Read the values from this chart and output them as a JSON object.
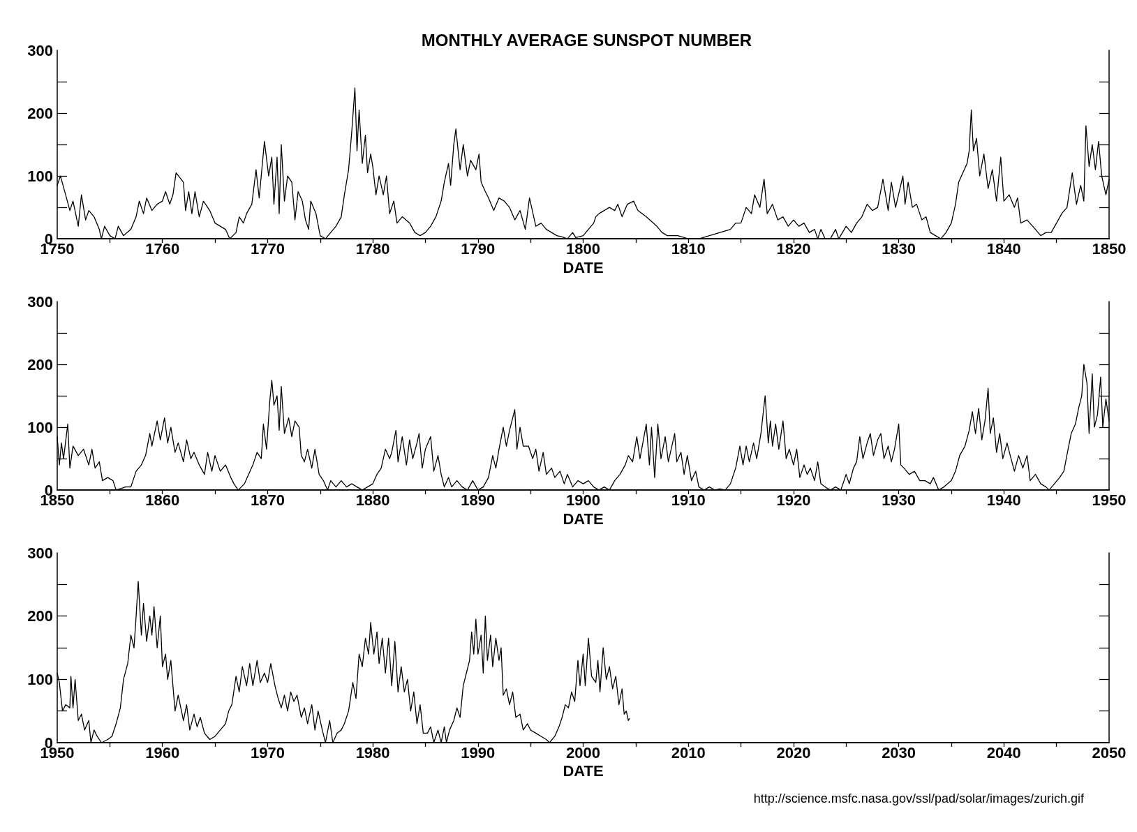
{
  "chart_data": [
    {
      "type": "line",
      "title": "MONTHLY AVERAGE SUNSPOT NUMBER",
      "xlabel": "DATE",
      "color": "#000000",
      "grid": false,
      "marker": "none",
      "line_style": "solid",
      "xlim": [
        1750,
        1850
      ],
      "xticks": [
        1750,
        {
          "value": 1755,
          "label": null
        },
        1760,
        {
          "value": 1765,
          "label": null
        },
        1770,
        {
          "value": 1775,
          "label": null
        },
        1780,
        {
          "value": 1785,
          "label": null
        },
        1790,
        {
          "value": 1795,
          "label": null
        },
        1800,
        {
          "value": 1805,
          "label": null
        },
        1810,
        {
          "value": 1815,
          "label": null
        },
        1820,
        {
          "value": 1825,
          "label": null
        },
        1830,
        {
          "value": 1835,
          "label": null
        },
        1840,
        {
          "value": 1845,
          "label": null
        },
        1850
      ],
      "ylim": [
        0,
        300
      ],
      "yticks": [
        0,
        {
          "value": 50,
          "label": null
        },
        100,
        {
          "value": 150,
          "label": null
        },
        200,
        {
          "value": 250,
          "label": null
        },
        300
      ],
      "x": [
        1750.0,
        1750.3,
        1750.8,
        1751.2,
        1751.5,
        1752.0,
        1752.3,
        1752.7,
        1753.0,
        1753.5,
        1754.0,
        1754.2,
        1754.5,
        1755.0,
        1755.5,
        1755.8,
        1756.3,
        1757.0,
        1757.5,
        1757.8,
        1758.2,
        1758.5,
        1759.0,
        1759.5,
        1760.0,
        1760.3,
        1760.7,
        1761.0,
        1761.3,
        1762.0,
        1762.2,
        1762.5,
        1762.8,
        1763.1,
        1763.5,
        1763.9,
        1764.5,
        1765.0,
        1766.0,
        1766.4,
        1767.0,
        1767.3,
        1767.7,
        1768.0,
        1768.5,
        1768.9,
        1769.2,
        1769.7,
        1770.1,
        1770.4,
        1770.6,
        1770.9,
        1771.1,
        1771.3,
        1771.6,
        1771.9,
        1772.3,
        1772.6,
        1772.9,
        1773.3,
        1773.6,
        1773.9,
        1774.1,
        1774.6,
        1775.0,
        1775.5,
        1776.0,
        1776.5,
        1777.0,
        1777.3,
        1777.7,
        1778.0,
        1778.3,
        1778.5,
        1778.7,
        1779.0,
        1779.3,
        1779.5,
        1779.8,
        1780.0,
        1780.3,
        1780.6,
        1781.0,
        1781.3,
        1781.6,
        1782.0,
        1782.3,
        1782.8,
        1783.5,
        1784.0,
        1784.5,
        1785.0,
        1785.5,
        1786.0,
        1786.5,
        1786.8,
        1787.2,
        1787.4,
        1787.7,
        1787.9,
        1788.3,
        1788.6,
        1789.0,
        1789.3,
        1789.8,
        1790.1,
        1790.3,
        1790.7,
        1791.0,
        1791.5,
        1792.0,
        1792.5,
        1793.0,
        1793.5,
        1794.0,
        1794.5,
        1794.9,
        1795.5,
        1796.0,
        1796.5,
        1797.0,
        1797.5,
        1798.0,
        1798.5,
        1799.0,
        1799.3,
        1800.0,
        1800.5,
        1801.0,
        1801.2,
        1801.5,
        1802.0,
        1802.5,
        1803.0,
        1803.3,
        1803.7,
        1804.2,
        1804.8,
        1805.2,
        1806.0,
        1807.0,
        1807.5,
        1808.0,
        1809.0,
        1810.0,
        1811.0,
        1812.0,
        1813.0,
        1814.0,
        1814.5,
        1815.0,
        1815.5,
        1816.0,
        1816.3,
        1816.8,
        1817.2,
        1817.5,
        1818.0,
        1818.5,
        1819.0,
        1819.5,
        1820.0,
        1820.5,
        1821.0,
        1821.5,
        1822.0,
        1822.3,
        1822.6,
        1823.0,
        1823.5,
        1824.0,
        1824.3,
        1825.0,
        1825.5,
        1826.0,
        1826.5,
        1827.0,
        1827.5,
        1828.0,
        1828.5,
        1829.0,
        1829.3,
        1829.7,
        1830.4,
        1830.6,
        1830.9,
        1831.3,
        1831.7,
        1832.2,
        1832.6,
        1833.0,
        1833.5,
        1834.0,
        1834.5,
        1835.0,
        1835.4,
        1835.7,
        1836.1,
        1836.5,
        1836.7,
        1836.9,
        1837.1,
        1837.4,
        1837.7,
        1838.1,
        1838.5,
        1838.9,
        1839.3,
        1839.7,
        1840.0,
        1840.5,
        1841.0,
        1841.3,
        1841.6,
        1842.2,
        1843.0,
        1843.5,
        1844.0,
        1844.5,
        1845.0,
        1845.5,
        1846.0,
        1846.5,
        1846.9,
        1847.3,
        1847.6,
        1847.8,
        1848.1,
        1848.4,
        1848.7,
        1849.0,
        1849.3,
        1849.7,
        1850.0
      ],
      "values": [
        85,
        100,
        70,
        45,
        60,
        20,
        70,
        30,
        45,
        35,
        15,
        0,
        20,
        5,
        0,
        20,
        5,
        15,
        35,
        60,
        40,
        65,
        45,
        55,
        60,
        75,
        55,
        70,
        105,
        90,
        45,
        75,
        40,
        75,
        35,
        60,
        45,
        25,
        15,
        0,
        10,
        35,
        25,
        40,
        55,
        110,
        65,
        155,
        100,
        130,
        55,
        130,
        40,
        150,
        60,
        100,
        90,
        30,
        75,
        60,
        30,
        15,
        60,
        40,
        5,
        0,
        10,
        20,
        35,
        70,
        110,
        170,
        240,
        140,
        205,
        120,
        165,
        105,
        135,
        115,
        70,
        100,
        70,
        100,
        40,
        60,
        25,
        35,
        25,
        10,
        5,
        10,
        20,
        35,
        60,
        90,
        120,
        85,
        150,
        175,
        110,
        150,
        100,
        125,
        110,
        135,
        90,
        75,
        65,
        45,
        65,
        60,
        50,
        30,
        45,
        15,
        65,
        20,
        25,
        15,
        10,
        5,
        3,
        0,
        10,
        2,
        5,
        15,
        25,
        35,
        40,
        45,
        50,
        45,
        55,
        35,
        55,
        60,
        45,
        35,
        20,
        10,
        5,
        5,
        0,
        0,
        5,
        10,
        15,
        25,
        25,
        50,
        40,
        70,
        50,
        95,
        40,
        55,
        30,
        35,
        20,
        30,
        20,
        25,
        10,
        15,
        0,
        15,
        0,
        0,
        15,
        0,
        20,
        10,
        25,
        35,
        55,
        45,
        50,
        95,
        45,
        90,
        50,
        100,
        55,
        90,
        50,
        55,
        30,
        35,
        10,
        5,
        0,
        10,
        25,
        55,
        90,
        105,
        120,
        140,
        205,
        140,
        160,
        100,
        135,
        80,
        110,
        60,
        130,
        60,
        70,
        50,
        65,
        25,
        30,
        15,
        5,
        10,
        10,
        25,
        40,
        50,
        105,
        55,
        85,
        60,
        180,
        115,
        150,
        110,
        155,
        100,
        70,
        95
      ]
    },
    {
      "type": "line",
      "xlabel": "DATE",
      "color": "#000000",
      "grid": false,
      "marker": "none",
      "line_style": "solid",
      "xlim": [
        1850,
        1950
      ],
      "xticks": [
        1850,
        {
          "value": 1855,
          "label": null
        },
        1860,
        {
          "value": 1865,
          "label": null
        },
        1870,
        {
          "value": 1875,
          "label": null
        },
        1880,
        {
          "value": 1885,
          "label": null
        },
        1890,
        {
          "value": 1895,
          "label": null
        },
        1900,
        {
          "value": 1905,
          "label": null
        },
        1910,
        {
          "value": 1915,
          "label": null
        },
        1920,
        {
          "value": 1925,
          "label": null
        },
        1930,
        {
          "value": 1935,
          "label": null
        },
        1940,
        {
          "value": 1945,
          "label": null
        },
        1950
      ],
      "ylim": [
        0,
        300
      ],
      "yticks": [
        0,
        {
          "value": 50,
          "label": null
        },
        100,
        {
          "value": 150,
          "label": null
        },
        200,
        {
          "value": 250,
          "label": null
        },
        300
      ],
      "x": [
        1850.0,
        1850.2,
        1850.4,
        1850.6,
        1851.0,
        1851.2,
        1851.5,
        1852.0,
        1852.5,
        1853.0,
        1853.3,
        1853.6,
        1854.0,
        1854.3,
        1854.8,
        1855.3,
        1855.6,
        1856.5,
        1857.0,
        1857.5,
        1858.0,
        1858.4,
        1858.8,
        1859.0,
        1859.5,
        1859.8,
        1860.2,
        1860.5,
        1860.8,
        1861.2,
        1861.5,
        1862.0,
        1862.3,
        1862.7,
        1863.0,
        1863.5,
        1864.0,
        1864.3,
        1864.7,
        1865.0,
        1865.5,
        1866.0,
        1866.5,
        1866.8,
        1867.2,
        1867.8,
        1868.2,
        1868.6,
        1869.0,
        1869.4,
        1869.6,
        1869.9,
        1870.2,
        1870.4,
        1870.6,
        1870.9,
        1871.1,
        1871.3,
        1871.6,
        1872.0,
        1872.3,
        1872.6,
        1873.0,
        1873.2,
        1873.5,
        1873.8,
        1874.2,
        1874.5,
        1874.9,
        1875.3,
        1875.7,
        1876.0,
        1876.5,
        1877.0,
        1877.5,
        1878.0,
        1878.5,
        1879.0,
        1879.5,
        1880.0,
        1880.4,
        1880.8,
        1881.2,
        1881.6,
        1881.8,
        1882.2,
        1882.4,
        1882.8,
        1883.2,
        1883.5,
        1883.8,
        1884.2,
        1884.4,
        1884.7,
        1885.0,
        1885.5,
        1885.8,
        1886.2,
        1886.5,
        1886.8,
        1887.2,
        1887.5,
        1888.0,
        1888.5,
        1889.0,
        1889.5,
        1890.0,
        1890.5,
        1891.0,
        1891.4,
        1891.7,
        1892.0,
        1892.4,
        1892.7,
        1893.0,
        1893.5,
        1893.7,
        1894.0,
        1894.3,
        1894.8,
        1895.2,
        1895.5,
        1895.8,
        1896.2,
        1896.5,
        1897.0,
        1897.3,
        1897.8,
        1898.2,
        1898.5,
        1899.0,
        1899.5,
        1900.0,
        1900.5,
        1901.0,
        1901.5,
        1902.0,
        1902.5,
        1903.0,
        1903.5,
        1904.0,
        1904.3,
        1904.7,
        1905.1,
        1905.4,
        1906.0,
        1906.3,
        1906.5,
        1906.8,
        1907.1,
        1907.4,
        1907.8,
        1908.1,
        1908.7,
        1908.9,
        1909.3,
        1909.6,
        1909.9,
        1910.3,
        1910.7,
        1911.0,
        1911.5,
        1912.0,
        1912.5,
        1913.0,
        1913.5,
        1914.0,
        1914.5,
        1914.9,
        1915.2,
        1915.5,
        1915.8,
        1916.2,
        1916.5,
        1916.9,
        1917.3,
        1917.6,
        1917.8,
        1918.0,
        1918.3,
        1918.6,
        1919.0,
        1919.3,
        1919.6,
        1920.0,
        1920.3,
        1920.6,
        1921.0,
        1921.3,
        1921.6,
        1922.0,
        1922.3,
        1922.6,
        1923.0,
        1923.5,
        1924.0,
        1924.5,
        1925.0,
        1925.3,
        1925.7,
        1926.0,
        1926.3,
        1926.6,
        1927.0,
        1927.3,
        1927.6,
        1928.0,
        1928.3,
        1928.6,
        1929.0,
        1929.3,
        1929.6,
        1930.0,
        1930.2,
        1930.5,
        1931.0,
        1931.5,
        1932.0,
        1932.5,
        1933.0,
        1933.3,
        1933.8,
        1934.3,
        1935.0,
        1935.4,
        1935.8,
        1936.3,
        1936.7,
        1937.0,
        1937.3,
        1937.6,
        1937.9,
        1938.2,
        1938.5,
        1938.7,
        1939.0,
        1939.3,
        1939.6,
        1939.9,
        1940.3,
        1940.6,
        1941.0,
        1941.4,
        1941.8,
        1942.2,
        1942.5,
        1943.0,
        1943.5,
        1944.0,
        1944.3,
        1944.8,
        1945.3,
        1945.7,
        1946.1,
        1946.4,
        1946.8,
        1947.1,
        1947.4,
        1947.6,
        1947.9,
        1948.1,
        1948.4,
        1948.6,
        1948.9,
        1949.2,
        1949.4,
        1949.7,
        1950.0
      ],
      "values": [
        85,
        40,
        75,
        50,
        105,
        35,
        70,
        55,
        65,
        40,
        65,
        35,
        45,
        15,
        20,
        15,
        0,
        5,
        5,
        30,
        40,
        55,
        90,
        70,
        110,
        80,
        115,
        75,
        100,
        60,
        75,
        45,
        80,
        50,
        60,
        40,
        25,
        60,
        30,
        55,
        30,
        40,
        20,
        10,
        0,
        10,
        25,
        40,
        60,
        50,
        105,
        65,
        140,
        175,
        135,
        150,
        95,
        165,
        90,
        115,
        85,
        110,
        100,
        55,
        45,
        65,
        35,
        65,
        25,
        15,
        0,
        15,
        5,
        15,
        5,
        10,
        5,
        0,
        5,
        10,
        25,
        35,
        65,
        50,
        60,
        95,
        45,
        85,
        40,
        80,
        50,
        75,
        90,
        35,
        65,
        85,
        30,
        55,
        25,
        5,
        20,
        5,
        15,
        5,
        0,
        15,
        0,
        5,
        20,
        55,
        35,
        65,
        100,
        70,
        95,
        128,
        65,
        100,
        70,
        70,
        50,
        65,
        30,
        60,
        25,
        35,
        20,
        30,
        10,
        25,
        5,
        15,
        10,
        15,
        5,
        0,
        5,
        0,
        15,
        25,
        40,
        55,
        45,
        85,
        50,
        105,
        40,
        100,
        20,
        105,
        50,
        85,
        45,
        90,
        45,
        60,
        25,
        55,
        15,
        30,
        5,
        0,
        5,
        0,
        2,
        0,
        10,
        35,
        70,
        40,
        70,
        45,
        75,
        50,
        90,
        150,
        75,
        110,
        70,
        105,
        65,
        110,
        50,
        65,
        40,
        65,
        20,
        40,
        25,
        35,
        15,
        45,
        10,
        5,
        0,
        5,
        0,
        25,
        10,
        35,
        45,
        85,
        50,
        75,
        90,
        55,
        80,
        90,
        50,
        70,
        45,
        65,
        105,
        40,
        35,
        25,
        30,
        15,
        15,
        10,
        20,
        0,
        5,
        15,
        30,
        55,
        70,
        95,
        125,
        90,
        130,
        80,
        110,
        162,
        90,
        115,
        60,
        90,
        50,
        75,
        55,
        30,
        55,
        35,
        55,
        15,
        25,
        10,
        5,
        0,
        10,
        20,
        30,
        65,
        90,
        105,
        130,
        150,
        200,
        170,
        90,
        185,
        100,
        120,
        180,
        100,
        145,
        110
      ]
    },
    {
      "type": "line",
      "xlabel": "DATE",
      "color": "#000000",
      "grid": false,
      "marker": "none",
      "line_style": "solid",
      "xlim": [
        1950,
        2050
      ],
      "xticks": [
        1950,
        {
          "value": 1955,
          "label": null
        },
        1960,
        {
          "value": 1965,
          "label": null
        },
        1970,
        {
          "value": 1975,
          "label": null
        },
        1980,
        {
          "value": 1985,
          "label": null
        },
        1990,
        {
          "value": 1995,
          "label": null
        },
        2000,
        {
          "value": 2005,
          "label": null
        },
        2010,
        {
          "value": 2015,
          "label": null
        },
        2020,
        {
          "value": 2025,
          "label": null
        },
        2030,
        {
          "value": 2035,
          "label": null
        },
        2040,
        {
          "value": 2045,
          "label": null
        },
        2050
      ],
      "ylim": [
        0,
        300
      ],
      "yticks": [
        0,
        {
          "value": 50,
          "label": null
        },
        100,
        {
          "value": 150,
          "label": null
        },
        200,
        {
          "value": 250,
          "label": null
        },
        300
      ],
      "annotations": [
        "http://science.msfc.nasa.gov/ssl/pad/solar/images/zurich.gif"
      ],
      "x": [
        1950.0,
        1950.2,
        1950.5,
        1950.8,
        1951.2,
        1951.3,
        1951.5,
        1951.7,
        1952.0,
        1952.3,
        1952.6,
        1953.0,
        1953.2,
        1953.5,
        1953.8,
        1954.2,
        1954.8,
        1955.2,
        1955.6,
        1956.0,
        1956.3,
        1956.7,
        1957.0,
        1957.3,
        1957.5,
        1957.7,
        1958.0,
        1958.2,
        1958.5,
        1958.8,
        1959.0,
        1959.2,
        1959.5,
        1959.8,
        1960.0,
        1960.3,
        1960.5,
        1960.8,
        1961.0,
        1961.2,
        1961.5,
        1962.0,
        1962.3,
        1962.6,
        1963.0,
        1963.3,
        1963.6,
        1964.0,
        1964.5,
        1965.0,
        1965.5,
        1966.0,
        1966.3,
        1966.6,
        1967.0,
        1967.3,
        1967.6,
        1968.0,
        1968.3,
        1968.6,
        1969.0,
        1969.3,
        1969.7,
        1970.0,
        1970.3,
        1970.7,
        1971.0,
        1971.3,
        1971.6,
        1971.9,
        1972.2,
        1972.5,
        1972.8,
        1973.2,
        1973.5,
        1973.8,
        1974.2,
        1974.5,
        1974.8,
        1975.2,
        1975.5,
        1975.9,
        1976.2,
        1976.6,
        1977.0,
        1977.3,
        1977.7,
        1978.1,
        1978.4,
        1978.7,
        1979.0,
        1979.3,
        1979.6,
        1979.8,
        1980.1,
        1980.4,
        1980.6,
        1980.9,
        1981.2,
        1981.5,
        1981.8,
        1982.1,
        1982.4,
        1982.7,
        1983.0,
        1983.3,
        1983.6,
        1983.9,
        1984.2,
        1984.5,
        1984.8,
        1985.2,
        1985.5,
        1985.8,
        1986.2,
        1986.5,
        1986.8,
        1987.0,
        1987.3,
        1987.7,
        1988.0,
        1988.3,
        1988.6,
        1988.9,
        1989.2,
        1989.4,
        1989.6,
        1989.8,
        1990.0,
        1990.3,
        1990.5,
        1990.7,
        1990.9,
        1991.2,
        1991.4,
        1991.7,
        1992.0,
        1992.2,
        1992.4,
        1992.7,
        1993.0,
        1993.3,
        1993.6,
        1994.0,
        1994.3,
        1994.7,
        1995.0,
        1995.5,
        1996.0,
        1996.5,
        1996.8,
        1997.3,
        1997.7,
        1998.0,
        1998.3,
        1998.6,
        1998.9,
        1999.2,
        1999.5,
        1999.7,
        2000.0,
        2000.2,
        2000.5,
        2000.8,
        2001.2,
        2001.4,
        2001.6,
        2001.9,
        2002.2,
        2002.5,
        2002.8,
        2003.1,
        2003.4,
        2003.7,
        2003.9,
        2004.1,
        2004.3,
        2004.4
      ],
      "values": [
        110,
        95,
        50,
        60,
        55,
        105,
        55,
        100,
        35,
        45,
        20,
        35,
        0,
        20,
        10,
        0,
        5,
        10,
        30,
        55,
        100,
        125,
        170,
        150,
        200,
        255,
        170,
        220,
        160,
        200,
        170,
        215,
        150,
        200,
        120,
        140,
        100,
        130,
        90,
        50,
        75,
        35,
        60,
        20,
        45,
        25,
        40,
        15,
        5,
        10,
        20,
        30,
        50,
        60,
        105,
        80,
        120,
        90,
        125,
        90,
        130,
        95,
        110,
        95,
        125,
        90,
        70,
        55,
        75,
        50,
        80,
        65,
        75,
        40,
        55,
        30,
        60,
        20,
        50,
        20,
        0,
        35,
        0,
        15,
        20,
        30,
        50,
        95,
        70,
        140,
        120,
        165,
        140,
        190,
        140,
        175,
        125,
        165,
        110,
        165,
        90,
        160,
        80,
        120,
        80,
        100,
        50,
        80,
        30,
        60,
        15,
        15,
        25,
        0,
        20,
        0,
        25,
        0,
        20,
        35,
        55,
        40,
        90,
        110,
        130,
        175,
        140,
        195,
        140,
        170,
        110,
        200,
        130,
        170,
        120,
        165,
        130,
        150,
        75,
        85,
        60,
        80,
        40,
        45,
        20,
        30,
        20,
        15,
        10,
        5,
        0,
        10,
        25,
        40,
        60,
        55,
        80,
        65,
        130,
        90,
        140,
        90,
        165,
        105,
        95,
        130,
        80,
        150,
        100,
        120,
        85,
        105,
        60,
        85,
        45,
        50,
        35,
        38
      ]
    }
  ]
}
